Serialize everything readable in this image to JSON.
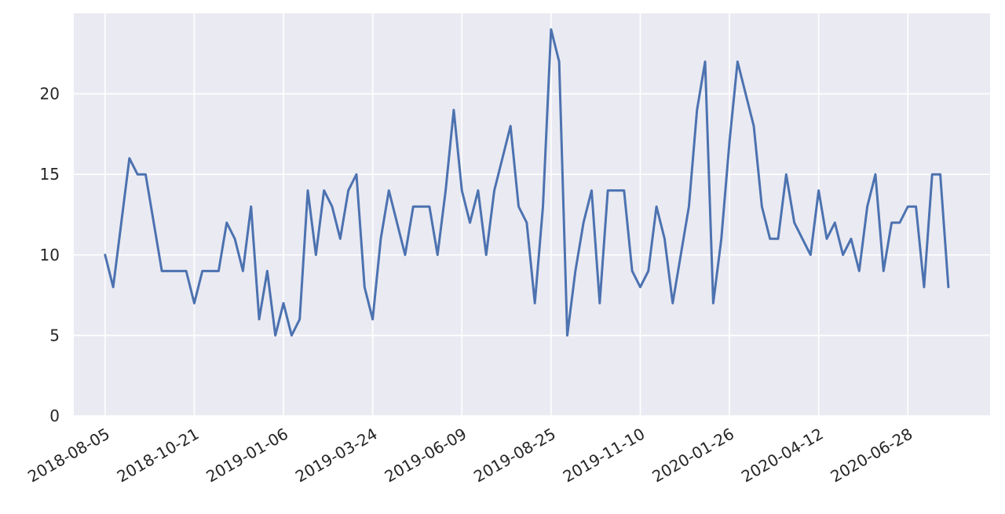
{
  "chart_data": {
    "type": "line",
    "title": "",
    "xlabel": "",
    "ylabel": "",
    "grid": true,
    "colors": {
      "background": "#eaeaf2",
      "grid": "#ffffff",
      "line": "#4c72b0",
      "text": "#262626"
    },
    "x_start": "2018-08-05",
    "x_step_days": 7,
    "xlim": [
      "2018-07-09",
      "2020-09-07"
    ],
    "ylim": [
      0,
      25
    ],
    "x_ticks": [
      "2018-08-05",
      "2018-10-21",
      "2019-01-06",
      "2019-03-24",
      "2019-06-09",
      "2019-08-25",
      "2019-11-10",
      "2020-01-26",
      "2020-04-12",
      "2020-06-28"
    ],
    "y_ticks": [
      0,
      5,
      10,
      15,
      20
    ],
    "series": [
      {
        "name": "",
        "values": [
          10,
          8,
          12,
          16,
          15,
          15,
          12,
          9,
          9,
          9,
          9,
          7,
          9,
          9,
          9,
          12,
          11,
          9,
          13,
          6,
          9,
          5,
          7,
          5,
          6,
          14,
          10,
          14,
          13,
          11,
          14,
          15,
          8,
          6,
          11,
          14,
          12,
          10,
          13,
          13,
          13,
          10,
          14,
          19,
          14,
          12,
          14,
          10,
          14,
          16,
          18,
          13,
          12,
          7,
          13,
          24,
          22,
          5,
          9,
          12,
          14,
          7,
          14,
          14,
          14,
          9,
          8,
          9,
          13,
          11,
          7,
          10,
          13,
          19,
          22,
          7,
          11,
          17,
          22,
          20,
          18,
          13,
          11,
          11,
          15,
          12,
          11,
          10,
          14,
          11,
          12,
          10,
          11,
          9,
          13,
          15,
          9,
          12,
          12,
          13,
          13,
          8,
          15,
          15,
          8
        ]
      }
    ]
  }
}
